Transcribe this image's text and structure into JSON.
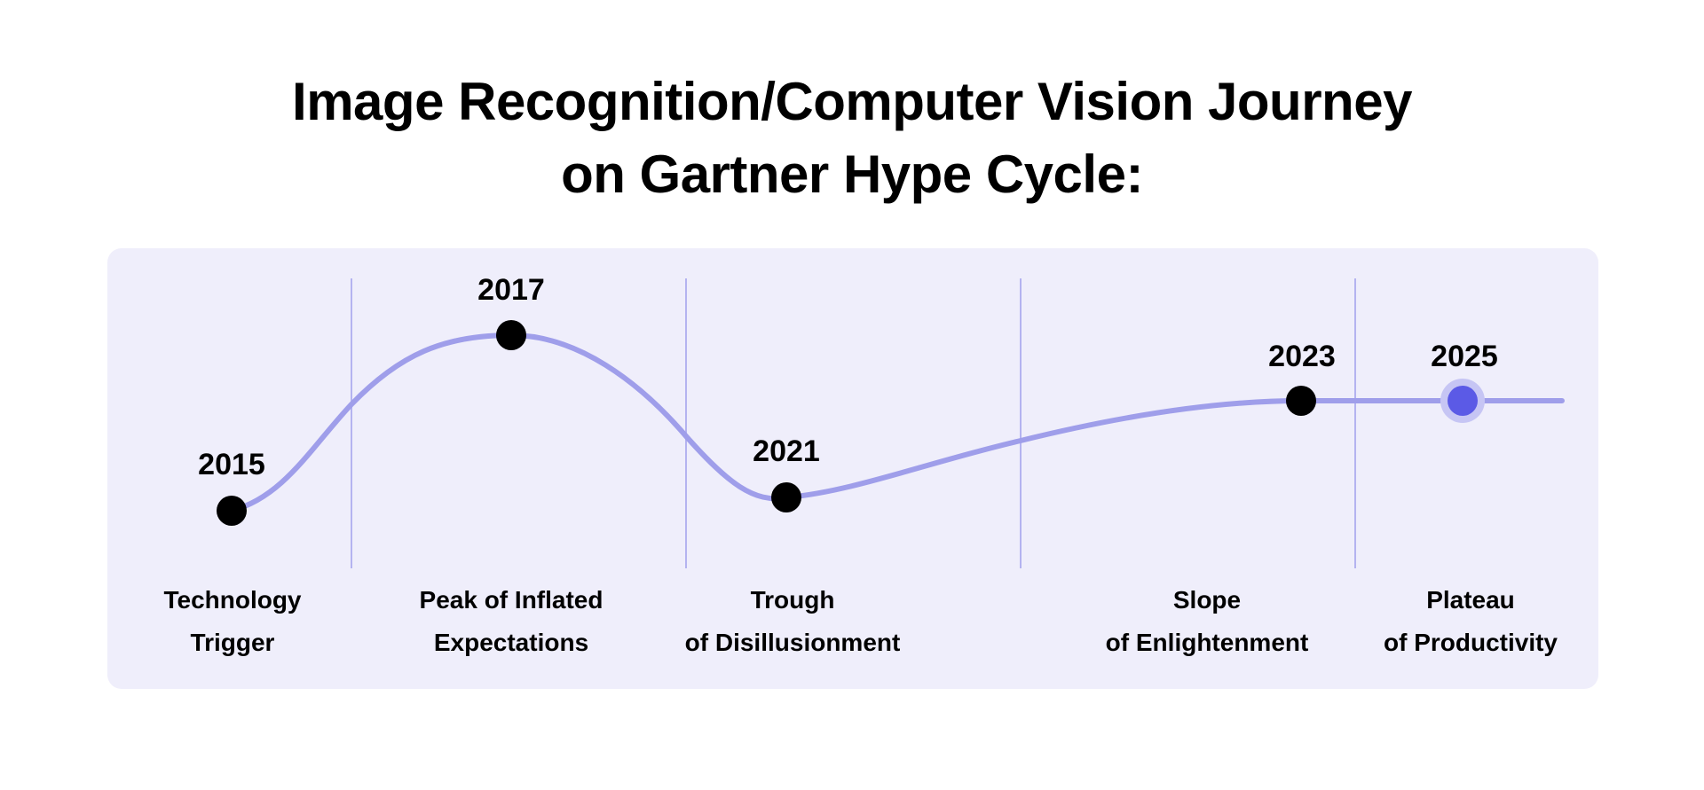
{
  "title": {
    "line1": "Image Recognition/Computer Vision Journey",
    "line2": "on Gartner Hype Cycle:"
  },
  "colors": {
    "panel_background": "#efeefb",
    "curve": "#9f9eea",
    "divider": "#b4b3f0",
    "milestone_dot": "#000000",
    "current_dot": "#5b5ae6",
    "current_halo": "#c6c5f4"
  },
  "milestones": [
    {
      "year": "2015",
      "stage": "Technology Trigger"
    },
    {
      "year": "2017",
      "stage": "Peak of Inflated Expectations"
    },
    {
      "year": "2021",
      "stage": "Trough of Disillusionment"
    },
    {
      "year": "2023",
      "stage": "Slope of Enlightenment"
    },
    {
      "year": "2025",
      "stage": "Plateau of Productivity",
      "current": true
    }
  ],
  "stages": [
    {
      "line1": "Technology",
      "line2": "Trigger"
    },
    {
      "line1": "Peak of Inflated",
      "line2": "Expectations"
    },
    {
      "line1": "Trough",
      "line2": "of Disillusionment"
    },
    {
      "line1": "Slope",
      "line2": "of Enlightenment"
    },
    {
      "line1": "Plateau",
      "line2": "of Productivity"
    }
  ]
}
